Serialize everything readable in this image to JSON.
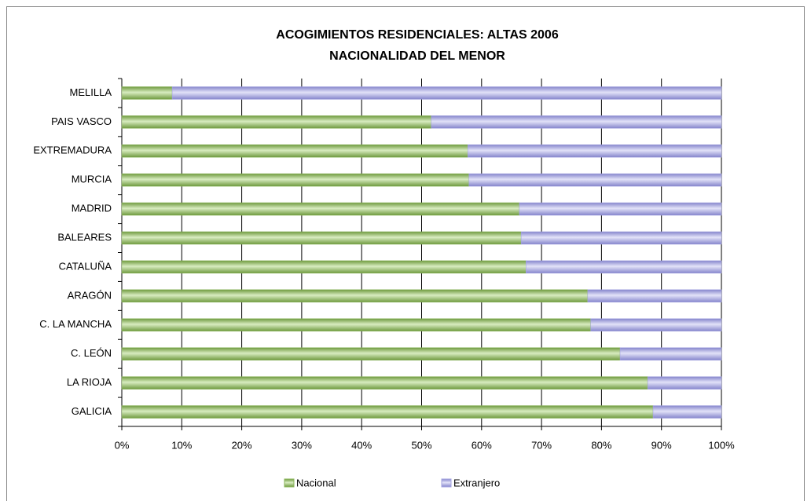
{
  "chart_data": {
    "type": "stacked-barh",
    "title": [
      "ACOGIMIENTOS RESIDENCIALES: ALTAS 2006",
      "NACIONALIDAD DEL MENOR"
    ],
    "categories": [
      "MELILLA",
      "PAIS VASCO",
      "EXTREMADURA",
      "MURCIA",
      "MADRID",
      "BALEARES",
      "CATALUÑA",
      "ARAGÓN",
      "C. LA MANCHA",
      "C. LEÓN",
      "LA RIOJA",
      "GALICIA"
    ],
    "series": [
      {
        "name": "Nacional",
        "color": "#8ab55a",
        "values": [
          8.4,
          51.6,
          57.7,
          57.9,
          66.3,
          66.6,
          67.4,
          77.7,
          78.2,
          83.1,
          87.7,
          88.6
        ]
      },
      {
        "name": "Extranjero",
        "color": "#a3a3e0",
        "values": [
          91.6,
          48.4,
          42.3,
          42.1,
          33.7,
          33.4,
          32.6,
          22.3,
          21.8,
          16.9,
          12.3,
          11.4
        ]
      }
    ],
    "xlim": [
      0,
      100
    ],
    "xticks": [
      {
        "value": 0,
        "label": "0%"
      },
      {
        "value": 10,
        "label": "10%"
      },
      {
        "value": 20,
        "label": "20%"
      },
      {
        "value": 30,
        "label": "30%"
      },
      {
        "value": 40,
        "label": "40%"
      },
      {
        "value": 50,
        "label": "50%"
      },
      {
        "value": 60,
        "label": "60%"
      },
      {
        "value": 70,
        "label": "70%"
      },
      {
        "value": 80,
        "label": "80%"
      },
      {
        "value": 90,
        "label": "90%"
      },
      {
        "value": 100,
        "label": "100%"
      }
    ],
    "grid": true,
    "legend": "bottom"
  }
}
